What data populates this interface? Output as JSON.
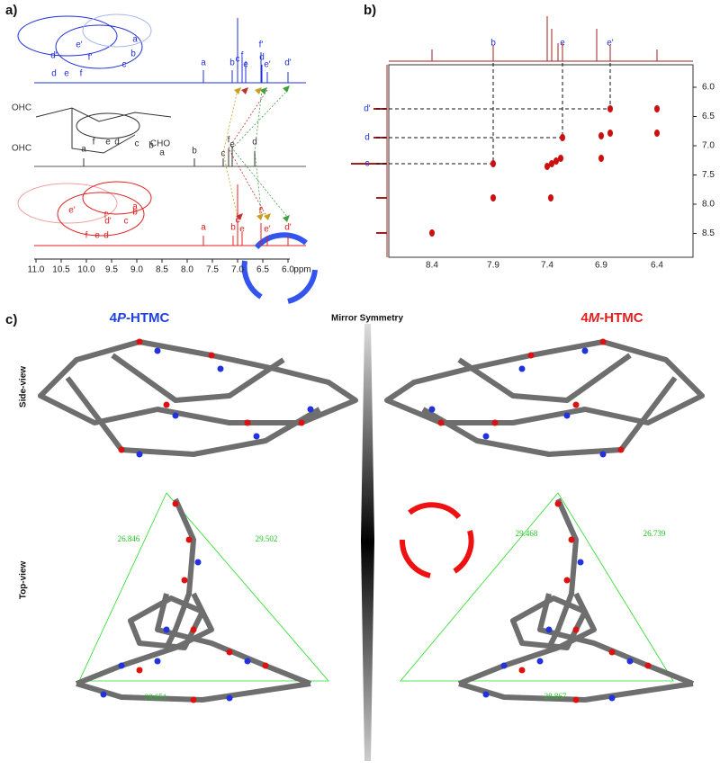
{
  "panel_a": {
    "label": "a)",
    "blue_spectrum": {
      "peak_labels": [
        "a",
        "b",
        "c",
        "f",
        "e",
        "f'",
        "d",
        "e'",
        "d'"
      ],
      "structure_labels": [
        "e'",
        "d'",
        "f'",
        "a",
        "b",
        "c",
        "d",
        "e",
        "f"
      ]
    },
    "black_spectrum": {
      "peak_labels": [
        "a",
        "b",
        "c",
        "f",
        "e",
        "d"
      ],
      "structure_labels": [
        "OHC",
        "OHC",
        "CHO",
        "a",
        "b",
        "c",
        "d",
        "e",
        "f"
      ]
    },
    "red_spectrum": {
      "peak_labels": [
        "a",
        "b",
        "c",
        "e",
        "f'",
        "e'",
        "d'"
      ],
      "structure_labels": [
        "e'",
        "f'",
        "d'",
        "a",
        "b",
        "c",
        "d",
        "e",
        "f"
      ]
    },
    "axis": {
      "ticks": [
        "11.0",
        "10.5",
        "10.0",
        "9.5",
        "9.0",
        "8.5",
        "8.0",
        "7.5",
        "7.0",
        "6.5",
        "6.0"
      ],
      "unit": "ppm"
    }
  },
  "panel_b": {
    "label": "b)",
    "top_labels": [
      "b",
      "e",
      "e'"
    ],
    "left_labels": [
      "d'",
      "d",
      "c"
    ],
    "x_ticks": [
      "8.4",
      "7.9",
      "7.4",
      "6.9",
      "6.4"
    ],
    "y_ticks": [
      "6.0",
      "6.5",
      "7.0",
      "7.5",
      "8.0",
      "8.5"
    ]
  },
  "panel_c": {
    "label": "c)",
    "left_title": {
      "prefix": "4",
      "italic": "P",
      "suffix": "-HTMC"
    },
    "center_title": "Mirror Symmetry",
    "right_title": {
      "prefix": "4",
      "italic": "M",
      "suffix": "-HTMC"
    },
    "row_labels": [
      "Side-view",
      "Top-view"
    ],
    "left_distances": [
      "26.846",
      "29.502",
      "28.651"
    ],
    "right_distances": [
      "29.468",
      "26.739",
      "28.867"
    ]
  }
}
